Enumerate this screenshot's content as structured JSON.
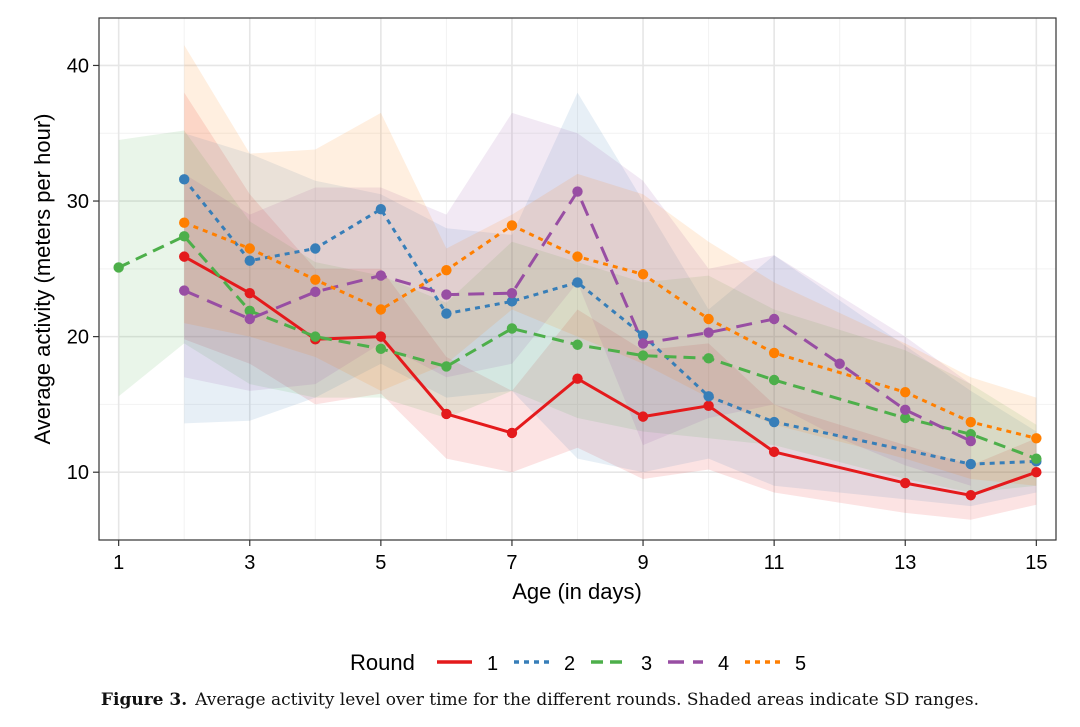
{
  "chart_data": {
    "type": "line",
    "xlabel": "Age (in days)",
    "ylabel": "Average activity (meters per hour)",
    "xlim": [
      0.7,
      15.3
    ],
    "ylim": [
      5,
      43.5
    ],
    "xticks": [
      1,
      3,
      5,
      7,
      9,
      11,
      13,
      15
    ],
    "yticks": [
      10,
      20,
      30,
      40
    ],
    "grid": true,
    "legend_title": "Round",
    "legend_position": "bottom",
    "series": [
      {
        "name": "1",
        "color": "#e41a1c",
        "dash": "solid",
        "x": [
          2,
          3,
          4,
          5,
          6,
          7,
          8,
          9,
          10,
          11,
          13,
          14,
          15
        ],
        "y": [
          25.9,
          23.2,
          19.8,
          20.0,
          14.3,
          12.9,
          16.9,
          14.1,
          14.9,
          11.5,
          9.2,
          8.3,
          10.0
        ],
        "lower": [
          19.8,
          18.0,
          15.0,
          15.8,
          11.0,
          10.0,
          11.8,
          9.5,
          10.2,
          8.5,
          7.0,
          6.5,
          7.6
        ],
        "upper": [
          38.0,
          30.5,
          25.0,
          25.0,
          18.5,
          16.0,
          22.0,
          19.0,
          19.5,
          15.0,
          12.0,
          10.5,
          12.5
        ]
      },
      {
        "name": "2",
        "color": "#377eb8",
        "dash": "dotted",
        "x": [
          2,
          3,
          4,
          5,
          6,
          7,
          8,
          9,
          10,
          11,
          14,
          15
        ],
        "y": [
          31.6,
          25.6,
          26.5,
          29.4,
          21.7,
          22.6,
          24.0,
          20.1,
          15.6,
          13.7,
          10.6,
          10.8
        ],
        "lower": [
          13.6,
          13.8,
          15.5,
          18.0,
          15.5,
          16.0,
          11.0,
          10.0,
          11.0,
          9.0,
          7.5,
          8.5
        ],
        "upper": [
          35.0,
          33.5,
          31.5,
          30.5,
          28.0,
          27.5,
          38.0,
          30.0,
          22.0,
          26.0,
          16.0,
          13.0
        ]
      },
      {
        "name": "3",
        "color": "#4daf4a",
        "dash": "dashed",
        "x": [
          1,
          2,
          3,
          4,
          5,
          6,
          7,
          8,
          9,
          10,
          11,
          13,
          14,
          15
        ],
        "y": [
          25.1,
          27.4,
          21.9,
          20.0,
          19.1,
          17.8,
          20.6,
          19.4,
          18.6,
          18.4,
          16.8,
          14.0,
          12.8,
          11.0
        ],
        "lower": [
          15.6,
          19.5,
          16.5,
          15.5,
          15.5,
          14.0,
          16.0,
          14.0,
          13.0,
          12.5,
          12.0,
          9.5,
          8.5,
          9.0
        ],
        "upper": [
          34.5,
          35.2,
          28.5,
          25.5,
          24.5,
          22.5,
          27.0,
          25.5,
          24.0,
          24.5,
          22.0,
          19.0,
          16.5,
          13.5
        ]
      },
      {
        "name": "4",
        "color": "#984ea3",
        "dash": "longdash",
        "x": [
          2,
          3,
          4,
          5,
          6,
          7,
          8,
          9,
          10,
          11,
          12,
          13,
          14
        ],
        "y": [
          23.4,
          21.3,
          23.3,
          24.5,
          23.1,
          23.2,
          30.7,
          19.5,
          20.3,
          21.3,
          18.0,
          14.6,
          12.3
        ],
        "lower": [
          17.0,
          16.0,
          16.5,
          19.5,
          17.0,
          18.0,
          24.0,
          12.0,
          14.0,
          15.0,
          12.5,
          10.5,
          9.0
        ],
        "upper": [
          32.0,
          29.0,
          31.0,
          31.0,
          29.0,
          36.5,
          35.0,
          31.5,
          25.0,
          26.0,
          23.0,
          20.0,
          16.5
        ]
      },
      {
        "name": "5",
        "color": "#ff7f00",
        "dash": "dotted",
        "x": [
          2,
          3,
          4,
          5,
          6,
          7,
          8,
          9,
          10,
          11,
          13,
          14,
          15
        ],
        "y": [
          28.4,
          26.5,
          24.2,
          22.0,
          24.9,
          28.2,
          25.9,
          24.6,
          21.3,
          18.8,
          15.9,
          13.7,
          12.5
        ],
        "lower": [
          21.0,
          20.0,
          18.5,
          16.0,
          18.0,
          22.0,
          20.0,
          18.0,
          15.5,
          13.5,
          11.0,
          9.5,
          9.0
        ],
        "upper": [
          41.5,
          33.5,
          33.8,
          36.5,
          26.5,
          29.0,
          32.0,
          30.5,
          27.0,
          24.0,
          19.5,
          17.0,
          15.5
        ]
      }
    ]
  },
  "caption": {
    "label": "Figure 3.",
    "text": "Average activity level over time for the different rounds. Shaded areas indicate SD ranges."
  }
}
